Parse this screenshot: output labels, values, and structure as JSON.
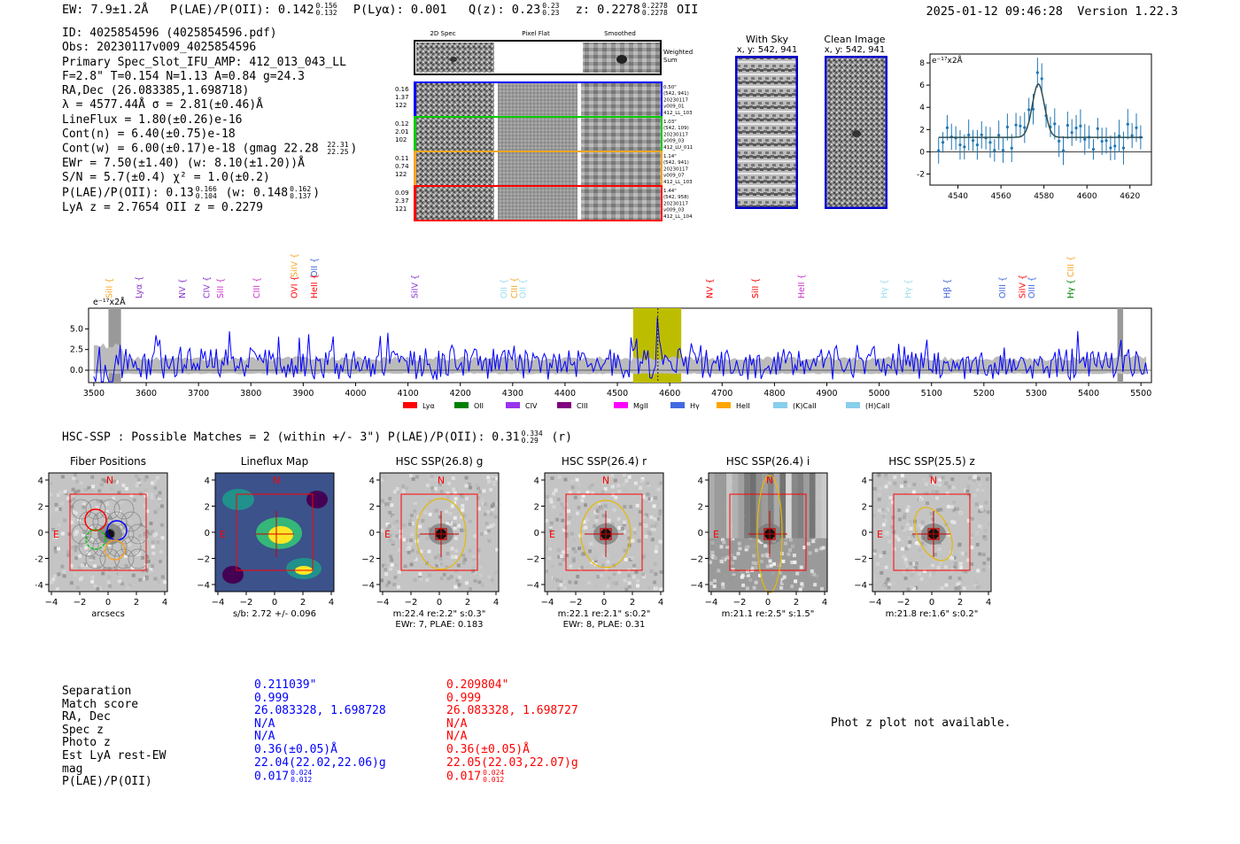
{
  "header": {
    "ew": "EW: 7.9±1.2Å",
    "plae_label": "P(LAE)/P(OII):",
    "plae_val": "0.142",
    "plae_hi": "0.156",
    "plae_lo": "0.132",
    "plya": "P(Lyα): 0.001",
    "qz_label": "Q(z): 0.23",
    "qz_hi": "0.23",
    "qz_lo": "0.23",
    "z_label": "z: 0.2278",
    "z_hi": "0.2278",
    "z_lo": "0.2278",
    "z_line": "OII",
    "timestamp": "2025-01-12 09:46:28",
    "version": "Version 1.22.3"
  },
  "info": {
    "id": "ID: 4025854596 (4025854596.pdf)",
    "obs": "Obs: 20230117v009_4025854596",
    "primary": "Primary Spec_Slot_IFU_AMP: 412_013_043_LL",
    "fwhm": "F=2.8\"  T=0.154  N=1.13  A=0.84  g=24.3",
    "radec": "RA,Dec (26.083385,1.698718)",
    "lambda": "λ = 4577.44Å  σ = 2.81(±0.46)Å",
    "lineflux": "LineFlux = 1.80(±0.26)e-16",
    "contn": "Cont(n) = 6.40(±0.75)e-18",
    "contw": "Cont(w) = 6.00(±0.17)e-18 (gmag 22.28",
    "contw_hi": "22.31",
    "contw_lo": "22.25",
    "contw_end": ")",
    "ewr": "EWr = 7.50(±1.40) (w: 8.10(±1.20))Å",
    "sn": "S/N = 5.7(±0.4)  χ² = 1.0(±0.2)",
    "plae": "P(LAE)/P(OII): 0.13",
    "plae_hi": "0.166",
    "plae_lo": "0.104",
    "plae_w": "(w: 0.148",
    "plae_w_hi": "0.162",
    "plae_w_lo": "0.137",
    "plae_w_end": ")",
    "lyaz": "LyA z = 2.7654  OII z = 0.2279"
  },
  "spec2d": {
    "col_titles": [
      "2D Spec",
      "Pixel Flat",
      "Smoothed"
    ],
    "weighted_label": "Weighted\nSum",
    "rows": [
      {
        "left": [
          "0.16",
          "1.37",
          "122"
        ],
        "right": [
          "0.50\"",
          "(542, 941)",
          "20230117",
          "v009_01",
          "412_LL_103"
        ],
        "color": "#0000ff"
      },
      {
        "left": [
          "0.12",
          "2.01",
          "102"
        ],
        "right": [
          "1.03\"",
          "(542, 109)",
          "20230117",
          "v009_03",
          "412_LU_011"
        ],
        "color": "#00cc00"
      },
      {
        "left": [
          "0.11",
          "0.74",
          "122"
        ],
        "right": [
          "1.14\"",
          "(542, 941)",
          "20230117",
          "v009_07",
          "412_LL_103"
        ],
        "color": "#f5a623"
      },
      {
        "left": [
          "0.09",
          "2.37",
          "121"
        ],
        "right": [
          "1.44\"",
          "(542, 958)",
          "20230117",
          "v009_03",
          "412_LL_104"
        ],
        "color": "#ff0000"
      }
    ]
  },
  "sky": {
    "with_sky": "With Sky",
    "with_sky_xy": "x, y: 542, 941",
    "clean": "Clean Image",
    "clean_xy": "x, y: 542, 941"
  },
  "zoom_chart": {
    "ylabel": "e⁻¹⁷x2Å",
    "x_ticks": [
      4540,
      4560,
      4580,
      4600,
      4620
    ],
    "y_ticks": [
      -2,
      0,
      2,
      4,
      6,
      8
    ],
    "xlim": [
      4527,
      4630
    ],
    "ylim": [
      -3,
      8.8
    ]
  },
  "chart_data": {
    "type": "line",
    "title": "",
    "xlabel": "",
    "ylabel": "e⁻¹⁷x2Å",
    "xlim": [
      3490,
      5520
    ],
    "ylim": [
      -1.5,
      7.5
    ],
    "x_ticks": [
      3500,
      3600,
      3700,
      3800,
      3900,
      4000,
      4100,
      4200,
      4300,
      4400,
      4500,
      4600,
      4700,
      4800,
      4900,
      5000,
      5100,
      5200,
      5300,
      5400,
      5500
    ],
    "y_ticks": [
      0.0,
      2.5,
      5.0
    ],
    "highlight_band": [
      4530,
      4622
    ],
    "line_center": 4577.4,
    "line_labels": [
      {
        "name": "SiII",
        "x": 3528,
        "color": "#f5a623",
        "row": 1
      },
      {
        "name": "Lyα",
        "x": 3585,
        "color": "#8833cc",
        "row": 1
      },
      {
        "name": "NV",
        "x": 3668,
        "color": "#8833cc",
        "row": 1
      },
      {
        "name": "CIV",
        "x": 3714,
        "color": "#8833cc",
        "row": 1
      },
      {
        "name": "SiII",
        "x": 3740,
        "color": "#cc33cc",
        "row": 1
      },
      {
        "name": "CIII",
        "x": 3810,
        "color": "#cc33cc",
        "row": 1
      },
      {
        "name": "SiIV",
        "x": 3882,
        "color": "#f5a623",
        "row": 0
      },
      {
        "name": "OVI",
        "x": 3882,
        "color": "#ff0000",
        "row": 1
      },
      {
        "name": "OII",
        "x": 3920,
        "color": "#4466dd",
        "row": 0
      },
      {
        "name": "HeII",
        "x": 3920,
        "color": "#ff0000",
        "row": 1
      },
      {
        "name": "SiIV",
        "x": 4112,
        "color": "#8833cc",
        "row": 1
      },
      {
        "name": "OII",
        "x": 4282,
        "color": "#99ddee",
        "row": 1
      },
      {
        "name": "CIII",
        "x": 4302,
        "color": "#f5a623",
        "row": 1
      },
      {
        "name": "OII",
        "x": 4318,
        "color": "#99ddee",
        "row": 1
      },
      {
        "name": "NV",
        "x": 4675,
        "color": "#ff0000",
        "row": 1
      },
      {
        "name": "SiII",
        "x": 4762,
        "color": "#ff0000",
        "row": 1
      },
      {
        "name": "HeII",
        "x": 4850,
        "color": "#cc33cc",
        "row": 1
      },
      {
        "name": "Hγ",
        "x": 5008,
        "color": "#99ddee",
        "row": 1
      },
      {
        "name": "Hγ",
        "x": 5054,
        "color": "#99ddee",
        "row": 1
      },
      {
        "name": "Hβ",
        "x": 5128,
        "color": "#4466dd",
        "row": 1
      },
      {
        "name": "OIII",
        "x": 5234,
        "color": "#4466dd",
        "row": 1
      },
      {
        "name": "SiIV",
        "x": 5272,
        "color": "#ff0000",
        "row": 1
      },
      {
        "name": "OIII",
        "x": 5290,
        "color": "#4466dd",
        "row": 1
      },
      {
        "name": "CIII",
        "x": 5364,
        "color": "#f5a623",
        "row": 0
      },
      {
        "name": "Hγ",
        "x": 5364,
        "color": "#008000",
        "row": 1
      }
    ],
    "legend": [
      {
        "name": "Lyα",
        "color": "#ff0000"
      },
      {
        "name": "OII",
        "color": "#008000"
      },
      {
        "name": "CIV",
        "color": "#9933ee"
      },
      {
        "name": "CIII",
        "color": "#800080"
      },
      {
        "name": "MgII",
        "color": "#ff00ff"
      },
      {
        "name": "Hγ",
        "color": "#4169e1"
      },
      {
        "name": "HeII",
        "color": "#ffa500"
      },
      {
        "name": "(K)CaII",
        "color": "#87ceeb"
      },
      {
        "name": "(H)CaII",
        "color": "#87ceeb"
      }
    ]
  },
  "hsc": {
    "title": "HSC-SSP : Possible Matches = 2 (within +/- 3\")  P(LAE)/P(OII): 0.31",
    "title_hi": "0.334",
    "title_lo": "0.29",
    "title_end": "(r)",
    "panels": [
      {
        "title": "Fiber Positions",
        "caption1": "arcsecs",
        "caption2": ""
      },
      {
        "title": "Lineflux Map",
        "caption1": "s/b: 2.72 +/- 0.096",
        "caption2": ""
      },
      {
        "title": "HSC SSP(26.8) g",
        "caption1": "m:22.4   re:2.2\"  s:0.3\"",
        "caption2": "EWr: 7, PLAE: 0.183"
      },
      {
        "title": "HSC SSP(26.4) r",
        "caption1": "m:22.1   re:2.1\"  s:0.2\"",
        "caption2": "EWr: 8, PLAE: 0.31"
      },
      {
        "title": "HSC SSP(26.4) i",
        "caption1": "m:21.1   re:2.5\"  s:1.5\"",
        "caption2": ""
      },
      {
        "title": "HSC SSP(25.5) z",
        "caption1": "m:21.8   re:1.6\"  s:0.2\"",
        "caption2": ""
      }
    ],
    "axis_ticks": [
      "−4",
      "−2",
      "0",
      "2",
      "4"
    ],
    "y_ticks": [
      "4",
      "2",
      "0",
      "−2",
      "−4"
    ],
    "n_label": "N",
    "e_label": "E"
  },
  "matches": {
    "labels": [
      "Separation",
      "Match score",
      "RA, Dec",
      "Spec z",
      "Photo z",
      "Est LyA rest-EW",
      "mag",
      "P(LAE)/P(OII)"
    ],
    "blue": [
      "0.211039\"",
      "0.999",
      "26.083328, 1.698728",
      "N/A",
      "N/A",
      "0.36(±0.05)Å",
      "22.04(22.02,22.06)g",
      "0.017"
    ],
    "blue_plae_hi": "0.024",
    "blue_plae_lo": "0.012",
    "red": [
      "0.209804\"",
      "0.999",
      "26.083328, 1.698727",
      "N/A",
      "N/A",
      "0.36(±0.05)Å",
      "22.05(22.03,22.07)g",
      "0.017"
    ],
    "red_plae_hi": "0.024",
    "red_plae_lo": "0.012",
    "photz_msg": "Phot z plot not available."
  }
}
